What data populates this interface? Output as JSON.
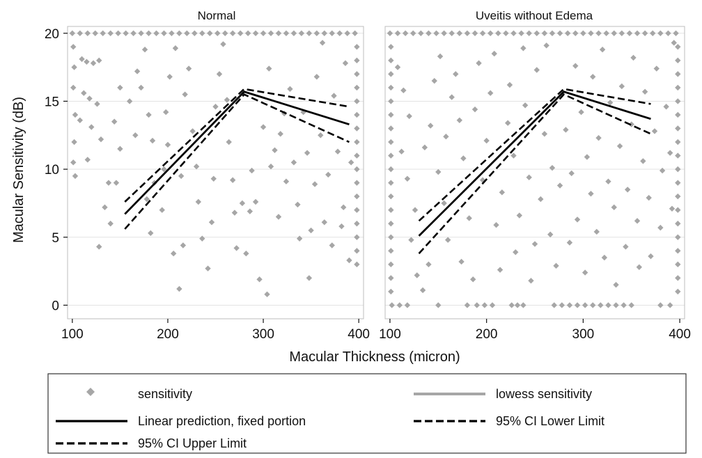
{
  "figure": {
    "xlabel": "Macular Thickness (micron)",
    "ylabel": "Macular Sensitivity (dB)"
  },
  "legend": {
    "items": [
      {
        "key": "sensitivity",
        "label": "sensitivity",
        "style": "marker"
      },
      {
        "key": "lowess",
        "label": "lowess  sensitivity",
        "style": "gray-line"
      },
      {
        "key": "linear",
        "label": "Linear prediction, fixed portion",
        "style": "solid"
      },
      {
        "key": "lower",
        "label": "95% CI Lower Limit",
        "style": "dashed"
      },
      {
        "key": "upper",
        "label": "95% CI Upper Limit",
        "style": "dashed"
      }
    ]
  },
  "colors": {
    "points": "#a6a6a6",
    "lines": "#000000",
    "grid": "#e3e3e3",
    "panel_border": "#bdbdbd"
  },
  "chart_data": [
    {
      "type": "scatter",
      "title": "Normal",
      "xlim": [
        95,
        405
      ],
      "ylim": [
        -1,
        20.5
      ],
      "xticks": [
        100,
        200,
        300,
        400
      ],
      "yticks": [
        0,
        5,
        10,
        15,
        20
      ],
      "grid": true,
      "prediction": {
        "linear": [
          [
            155,
            6.7
          ],
          [
            280,
            15.7
          ],
          [
            390,
            13.3
          ]
        ],
        "lower": [
          [
            155,
            5.6
          ],
          [
            280,
            15.5
          ],
          [
            390,
            12.0
          ]
        ],
        "upper": [
          [
            155,
            7.6
          ],
          [
            280,
            15.9
          ],
          [
            390,
            14.6
          ]
        ]
      },
      "points": [
        [
          100,
          20
        ],
        [
          108,
          20
        ],
        [
          116,
          20
        ],
        [
          124,
          20
        ],
        [
          132,
          20
        ],
        [
          140,
          20
        ],
        [
          148,
          20
        ],
        [
          156,
          20
        ],
        [
          164,
          20
        ],
        [
          172,
          20
        ],
        [
          180,
          20
        ],
        [
          188,
          20
        ],
        [
          196,
          20
        ],
        [
          204,
          20
        ],
        [
          212,
          20
        ],
        [
          220,
          20
        ],
        [
          228,
          20
        ],
        [
          236,
          20
        ],
        [
          244,
          20
        ],
        [
          252,
          20
        ],
        [
          260,
          20
        ],
        [
          268,
          20
        ],
        [
          276,
          20
        ],
        [
          284,
          20
        ],
        [
          292,
          20
        ],
        [
          300,
          20
        ],
        [
          308,
          20
        ],
        [
          316,
          20
        ],
        [
          324,
          20
        ],
        [
          332,
          20
        ],
        [
          340,
          20
        ],
        [
          348,
          20
        ],
        [
          356,
          20
        ],
        [
          364,
          20
        ],
        [
          372,
          20
        ],
        [
          380,
          20
        ],
        [
          388,
          20
        ],
        [
          396,
          20
        ],
        [
          398,
          19
        ],
        [
          398,
          18
        ],
        [
          398,
          17
        ],
        [
          398,
          16
        ],
        [
          398,
          15
        ],
        [
          398,
          14
        ],
        [
          398,
          13
        ],
        [
          398,
          12
        ],
        [
          398,
          11
        ],
        [
          398,
          10
        ],
        [
          398,
          9
        ],
        [
          398,
          8
        ],
        [
          398,
          7
        ],
        [
          398,
          6
        ],
        [
          398,
          5
        ],
        [
          398,
          4
        ],
        [
          398,
          3
        ],
        [
          101,
          19
        ],
        [
          102,
          17.5
        ],
        [
          101,
          16
        ],
        [
          103,
          14
        ],
        [
          102,
          12
        ],
        [
          101,
          10.5
        ],
        [
          103,
          9.5
        ],
        [
          110,
          18.1
        ],
        [
          115,
          17.9
        ],
        [
          122,
          17.8
        ],
        [
          128,
          18
        ],
        [
          112,
          15.6
        ],
        [
          118,
          15.2
        ],
        [
          126,
          14.8
        ],
        [
          108,
          13.6
        ],
        [
          120,
          13.1
        ],
        [
          116,
          10.7
        ],
        [
          130,
          12.2
        ],
        [
          134,
          7.2
        ],
        [
          128,
          4.3
        ],
        [
          140,
          6
        ],
        [
          138,
          9
        ],
        [
          146,
          9
        ],
        [
          150,
          11.5
        ],
        [
          144,
          13.5
        ],
        [
          150,
          16
        ],
        [
          160,
          15
        ],
        [
          166,
          12.5
        ],
        [
          168,
          17.2
        ],
        [
          176,
          18.8
        ],
        [
          172,
          16
        ],
        [
          180,
          14
        ],
        [
          184,
          12.1
        ],
        [
          186,
          9
        ],
        [
          178,
          7.8
        ],
        [
          182,
          5.3
        ],
        [
          194,
          7
        ],
        [
          196,
          10
        ],
        [
          200,
          11.8
        ],
        [
          198,
          14.2
        ],
        [
          202,
          16.8
        ],
        [
          208,
          18.9
        ],
        [
          206,
          3.8
        ],
        [
          212,
          1.2
        ],
        [
          216,
          4.4
        ],
        [
          214,
          9.5
        ],
        [
          218,
          15.5
        ],
        [
          222,
          17.4
        ],
        [
          226,
          12.8
        ],
        [
          230,
          10.2
        ],
        [
          232,
          7.6
        ],
        [
          236,
          4.9
        ],
        [
          242,
          2.7
        ],
        [
          246,
          6.1
        ],
        [
          248,
          9.3
        ],
        [
          250,
          14.6
        ],
        [
          254,
          17
        ],
        [
          258,
          19.2
        ],
        [
          262,
          15.1
        ],
        [
          264,
          12
        ],
        [
          268,
          9.2
        ],
        [
          270,
          6.8
        ],
        [
          272,
          4.2
        ],
        [
          278,
          7.5
        ],
        [
          282,
          3.8
        ],
        [
          286,
          6.9
        ],
        [
          288,
          9.9
        ],
        [
          292,
          7.6
        ],
        [
          296,
          1.9
        ],
        [
          304,
          0.8
        ],
        [
          300,
          13.1
        ],
        [
          306,
          17.4
        ],
        [
          308,
          10.2
        ],
        [
          312,
          11.4
        ],
        [
          316,
          6.5
        ],
        [
          318,
          12.6
        ],
        [
          322,
          14.1
        ],
        [
          324,
          9.1
        ],
        [
          328,
          15.9
        ],
        [
          332,
          10.5
        ],
        [
          336,
          7.4
        ],
        [
          338,
          4.9
        ],
        [
          342,
          14.2
        ],
        [
          346,
          11.2
        ],
        [
          348,
          2
        ],
        [
          350,
          5.5
        ],
        [
          354,
          8.9
        ],
        [
          356,
          16.8
        ],
        [
          360,
          12.5
        ],
        [
          362,
          19.3
        ],
        [
          364,
          6.1
        ],
        [
          368,
          9.6
        ],
        [
          372,
          4.4
        ],
        [
          374,
          15.4
        ],
        [
          378,
          11.3
        ],
        [
          382,
          5.8
        ],
        [
          384,
          7.2
        ],
        [
          386,
          17.8
        ],
        [
          390,
          3.3
        ],
        [
          392,
          10.5
        ]
      ]
    },
    {
      "type": "scatter",
      "title": "Uveitis without Edema",
      "xlim": [
        95,
        405
      ],
      "ylim": [
        -1,
        20.5
      ],
      "xticks": [
        100,
        200,
        300,
        400
      ],
      "yticks": [
        0,
        5,
        10,
        15,
        20
      ],
      "grid": true,
      "prediction": {
        "linear": [
          [
            130,
            5.1
          ],
          [
            280,
            15.7
          ],
          [
            370,
            13.7
          ]
        ],
        "lower": [
          [
            130,
            3.8
          ],
          [
            280,
            15.5
          ],
          [
            370,
            12.6
          ]
        ],
        "upper": [
          [
            130,
            6.2
          ],
          [
            280,
            15.9
          ],
          [
            370,
            14.8
          ]
        ]
      },
      "points": [
        [
          100,
          20
        ],
        [
          108,
          20
        ],
        [
          116,
          20
        ],
        [
          124,
          20
        ],
        [
          132,
          20
        ],
        [
          140,
          20
        ],
        [
          148,
          20
        ],
        [
          156,
          20
        ],
        [
          164,
          20
        ],
        [
          172,
          20
        ],
        [
          180,
          20
        ],
        [
          188,
          20
        ],
        [
          196,
          20
        ],
        [
          204,
          20
        ],
        [
          212,
          20
        ],
        [
          220,
          20
        ],
        [
          228,
          20
        ],
        [
          236,
          20
        ],
        [
          244,
          20
        ],
        [
          252,
          20
        ],
        [
          260,
          20
        ],
        [
          268,
          20
        ],
        [
          276,
          20
        ],
        [
          284,
          20
        ],
        [
          292,
          20
        ],
        [
          300,
          20
        ],
        [
          308,
          20
        ],
        [
          316,
          20
        ],
        [
          324,
          20
        ],
        [
          332,
          20
        ],
        [
          340,
          20
        ],
        [
          348,
          20
        ],
        [
          356,
          20
        ],
        [
          364,
          20
        ],
        [
          372,
          20
        ],
        [
          380,
          20
        ],
        [
          388,
          20
        ],
        [
          396,
          20
        ],
        [
          398,
          19
        ],
        [
          398,
          18
        ],
        [
          398,
          17
        ],
        [
          398,
          16
        ],
        [
          398,
          15
        ],
        [
          398,
          14
        ],
        [
          398,
          13
        ],
        [
          398,
          12
        ],
        [
          398,
          11
        ],
        [
          398,
          10
        ],
        [
          398,
          9
        ],
        [
          398,
          8
        ],
        [
          398,
          7
        ],
        [
          398,
          6
        ],
        [
          398,
          5
        ],
        [
          398,
          4
        ],
        [
          398,
          3
        ],
        [
          398,
          2
        ],
        [
          398,
          1
        ],
        [
          101,
          19
        ],
        [
          101,
          18
        ],
        [
          101,
          17
        ],
        [
          101,
          16
        ],
        [
          101,
          15
        ],
        [
          101,
          14
        ],
        [
          101,
          13
        ],
        [
          101,
          12
        ],
        [
          101,
          11
        ],
        [
          101,
          10
        ],
        [
          101,
          9
        ],
        [
          101,
          8
        ],
        [
          101,
          7
        ],
        [
          101,
          6
        ],
        [
          101,
          5
        ],
        [
          101,
          4
        ],
        [
          101,
          3
        ],
        [
          101,
          2
        ],
        [
          101,
          1
        ],
        [
          102,
          0
        ],
        [
          110,
          0
        ],
        [
          118,
          0
        ],
        [
          150,
          0
        ],
        [
          180,
          0
        ],
        [
          190,
          0
        ],
        [
          198,
          0
        ],
        [
          206,
          0
        ],
        [
          226,
          0
        ],
        [
          232,
          0
        ],
        [
          238,
          0
        ],
        [
          270,
          0
        ],
        [
          278,
          0
        ],
        [
          286,
          0
        ],
        [
          294,
          0
        ],
        [
          302,
          0
        ],
        [
          310,
          0
        ],
        [
          318,
          0
        ],
        [
          326,
          0
        ],
        [
          334,
          0
        ],
        [
          342,
          0
        ],
        [
          350,
          0
        ],
        [
          380,
          0
        ],
        [
          390,
          0
        ],
        [
          108,
          17.5
        ],
        [
          114,
          15.8
        ],
        [
          120,
          13.9
        ],
        [
          112,
          11.3
        ],
        [
          118,
          9.3
        ],
        [
          126,
          7
        ],
        [
          122,
          4.8
        ],
        [
          128,
          2.2
        ],
        [
          134,
          1.1
        ],
        [
          140,
          3
        ],
        [
          136,
          11.6
        ],
        [
          142,
          13.2
        ],
        [
          146,
          16.5
        ],
        [
          152,
          18.3
        ],
        [
          150,
          9.8
        ],
        [
          156,
          7.5
        ],
        [
          160,
          4.8
        ],
        [
          158,
          12.4
        ],
        [
          164,
          15.3
        ],
        [
          168,
          17
        ],
        [
          172,
          13.6
        ],
        [
          176,
          10.8
        ],
        [
          174,
          3.2
        ],
        [
          182,
          6.4
        ],
        [
          186,
          1.9
        ],
        [
          188,
          14.4
        ],
        [
          192,
          17.8
        ],
        [
          196,
          9.2
        ],
        [
          200,
          12.1
        ],
        [
          204,
          15.6
        ],
        [
          208,
          18.5
        ],
        [
          210,
          5.9
        ],
        [
          214,
          2.6
        ],
        [
          216,
          8.3
        ],
        [
          222,
          13.4
        ],
        [
          224,
          16.2
        ],
        [
          228,
          11
        ],
        [
          230,
          3.9
        ],
        [
          234,
          6.6
        ],
        [
          238,
          18.9
        ],
        [
          240,
          14.7
        ],
        [
          244,
          9.4
        ],
        [
          246,
          1.8
        ],
        [
          250,
          4.5
        ],
        [
          252,
          17.3
        ],
        [
          256,
          7.8
        ],
        [
          260,
          12.6
        ],
        [
          262,
          19.1
        ],
        [
          266,
          5.2
        ],
        [
          268,
          10.1
        ],
        [
          272,
          2.9
        ],
        [
          276,
          8.8
        ],
        [
          282,
          12.9
        ],
        [
          286,
          4.6
        ],
        [
          288,
          9.7
        ],
        [
          292,
          17.6
        ],
        [
          294,
          6.3
        ],
        [
          298,
          14.2
        ],
        [
          302,
          2.4
        ],
        [
          304,
          10.9
        ],
        [
          308,
          8.2
        ],
        [
          310,
          16.8
        ],
        [
          314,
          5.4
        ],
        [
          316,
          12.3
        ],
        [
          320,
          18.8
        ],
        [
          322,
          3.5
        ],
        [
          326,
          9.1
        ],
        [
          328,
          14.9
        ],
        [
          332,
          7.2
        ],
        [
          334,
          1.5
        ],
        [
          338,
          11.7
        ],
        [
          340,
          16.1
        ],
        [
          344,
          4.3
        ],
        [
          346,
          8.5
        ],
        [
          350,
          13.3
        ],
        [
          352,
          18.2
        ],
        [
          356,
          6.2
        ],
        [
          358,
          2.8
        ],
        [
          362,
          10.6
        ],
        [
          364,
          15.7
        ],
        [
          368,
          7.9
        ],
        [
          370,
          3.6
        ],
        [
          374,
          12.8
        ],
        [
          376,
          17.4
        ],
        [
          380,
          5.7
        ],
        [
          382,
          9.9
        ],
        [
          386,
          14.6
        ],
        [
          390,
          11.2
        ],
        [
          392,
          7.1
        ],
        [
          394,
          19.3
        ]
      ]
    }
  ]
}
